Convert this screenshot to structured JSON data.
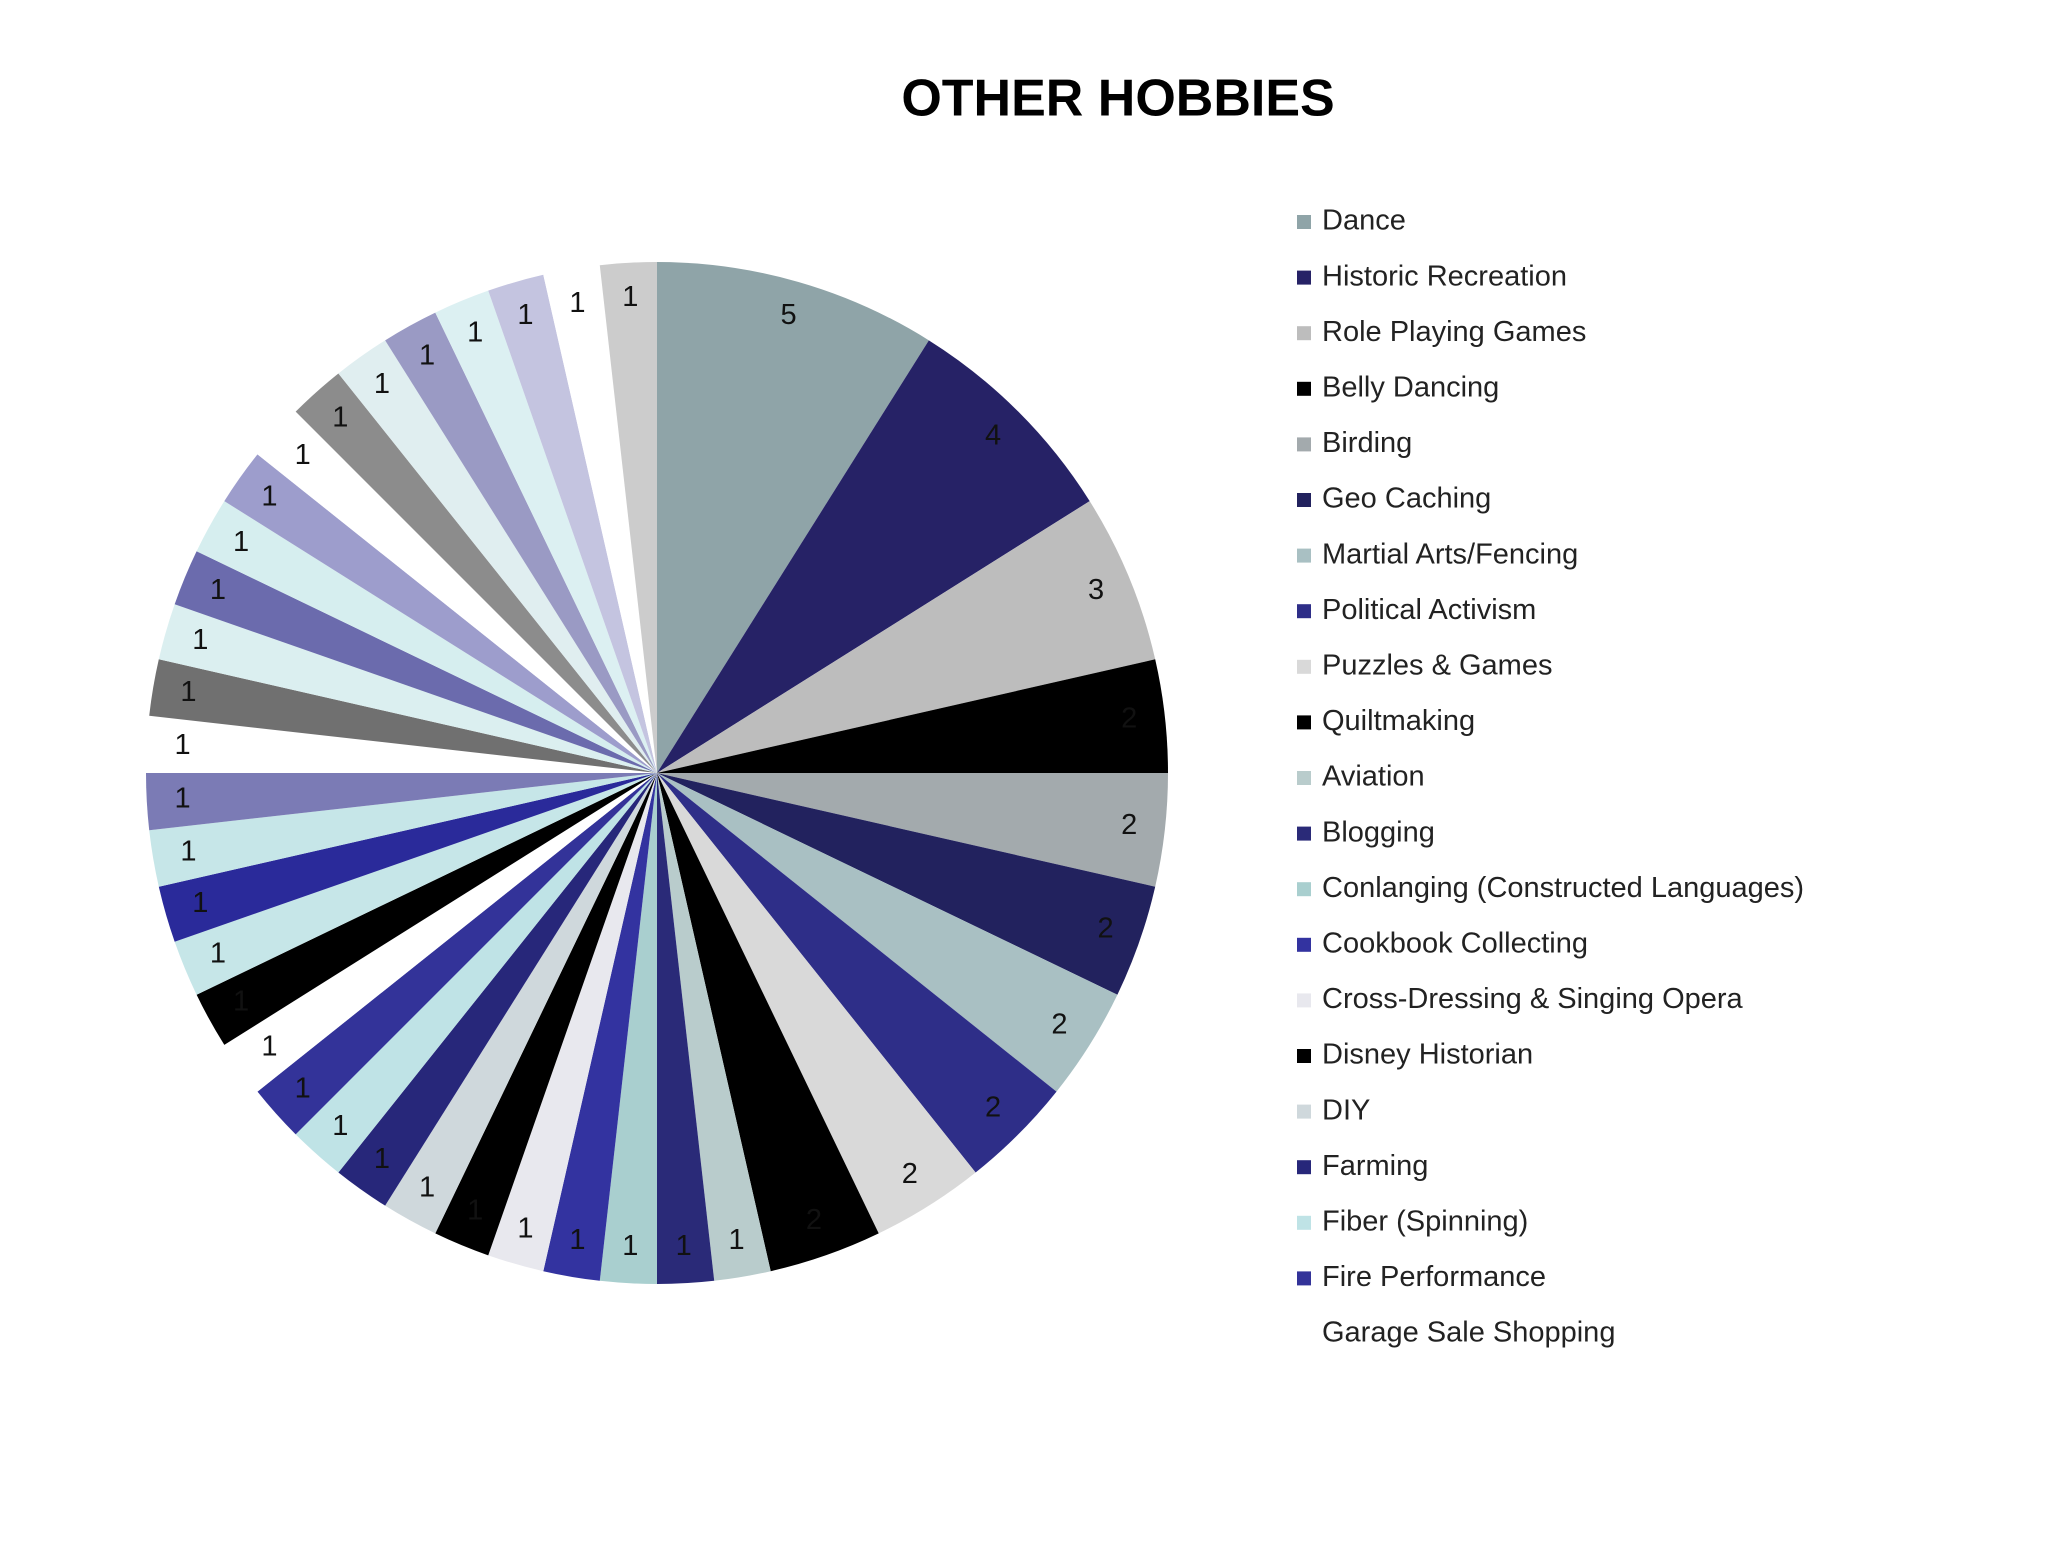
{
  "chart_data": {
    "type": "pie",
    "title": "OTHER HOBBIES",
    "categories": [
      "Dance",
      "Historic Recreation",
      "Role Playing Games",
      "Belly Dancing",
      "Birding",
      "Geo Caching",
      "Martial Arts/Fencing",
      "Political Activism",
      "Puzzles & Games",
      "Quiltmaking",
      "Aviation",
      "Blogging",
      "Conlanging (Constructed Languages)",
      "Cookbook Collecting",
      "Cross-Dressing & Singing Opera",
      "Disney Historian",
      "DIY",
      "Farming",
      "Fiber (Spinning)",
      "Fire Performance",
      "Garage Sale Shopping",
      null,
      null,
      null,
      null,
      null,
      null,
      null,
      null,
      null,
      null,
      null,
      null,
      null,
      null,
      null,
      null,
      null,
      null,
      null
    ],
    "values": [
      5,
      4,
      3,
      2,
      2,
      2,
      2,
      2,
      2,
      2,
      1,
      1,
      1,
      1,
      1,
      1,
      1,
      1,
      1,
      1,
      1,
      1,
      1,
      1,
      1,
      1,
      1,
      1,
      1,
      1,
      1,
      1,
      1,
      1,
      1,
      1,
      1,
      1,
      1,
      1
    ],
    "colors": [
      "#8fa4a8",
      "#262266",
      "#bdbdbd",
      "#000000",
      "#a3aaad",
      "#22225e",
      "#a9c0c3",
      "#2e2e88",
      "#d9d9d9",
      "#000000",
      "#b9cccc",
      "#2a2a78",
      "#a9cfcf",
      "#3333a0",
      "#e8e8ee",
      "#000000",
      "#cfd8dc",
      "#27277a",
      "#bfe3e6",
      "#333399",
      "#ffffff",
      "#000000",
      "#c6e6e8",
      "#2a2a9a",
      "#c6e6e8",
      "#7b7bb5",
      "#ffffff",
      "#707070",
      "#dbeff0",
      "#6b6bad",
      "#d6eeef",
      "#9d9dcc",
      "#ffffff",
      "#8c8c8c",
      "#e0eef0",
      "#9a9ac4",
      "#dcf0f2",
      "#c4c4e0",
      "#ffffff",
      "#cccccc"
    ]
  }
}
